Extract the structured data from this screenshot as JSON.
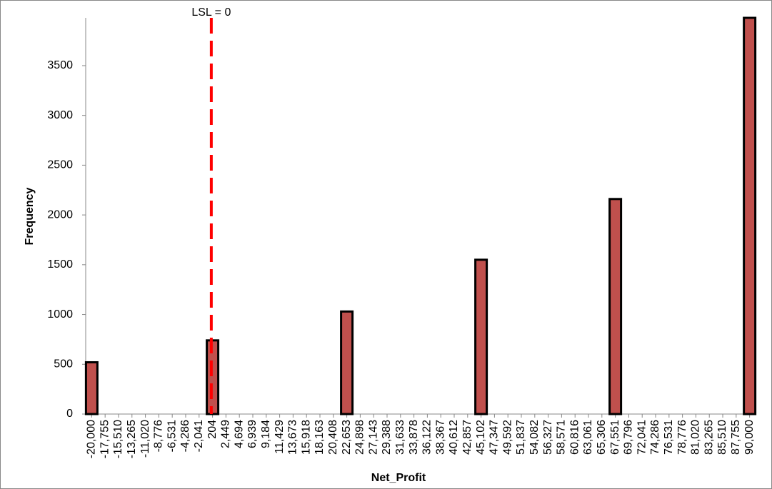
{
  "chart_data": {
    "type": "bar",
    "x_label": "Net_Profit",
    "y_label": "Frequency",
    "x": [
      -20000,
      204,
      22653,
      45102,
      67551,
      90000
    ],
    "values": [
      520,
      740,
      1030,
      1550,
      2160,
      3980
    ],
    "color": "#c0504d",
    "xlim": [
      -21000,
      91000
    ],
    "xticks": [
      {
        "value": -20000,
        "label": "-20,000"
      },
      {
        "value": -17755,
        "label": "-17,755"
      },
      {
        "value": -15510,
        "label": "-15,510"
      },
      {
        "value": -13265,
        "label": "-13,265"
      },
      {
        "value": -11020,
        "label": "-11,020"
      },
      {
        "value": -8776,
        "label": "-8,776"
      },
      {
        "value": -6531,
        "label": "-6,531"
      },
      {
        "value": -4286,
        "label": "-4,286"
      },
      {
        "value": -2041,
        "label": "-2,041"
      },
      204,
      {
        "value": 2449,
        "label": "2,449"
      },
      {
        "value": 4694,
        "label": "4,694"
      },
      {
        "value": 6939,
        "label": "6,939"
      },
      {
        "value": 9184,
        "label": "9,184"
      },
      {
        "value": 11429,
        "label": "11,429"
      },
      {
        "value": 13673,
        "label": "13,673"
      },
      {
        "value": 15918,
        "label": "15,918"
      },
      {
        "value": 18163,
        "label": "18,163"
      },
      {
        "value": 20408,
        "label": "20,408"
      },
      {
        "value": 22653,
        "label": "22,653"
      },
      {
        "value": 24898,
        "label": "24,898"
      },
      {
        "value": 27143,
        "label": "27,143"
      },
      {
        "value": 29388,
        "label": "29,388"
      },
      {
        "value": 31633,
        "label": "31,633"
      },
      {
        "value": 33878,
        "label": "33,878"
      },
      {
        "value": 36122,
        "label": "36,122"
      },
      {
        "value": 38367,
        "label": "38,367"
      },
      {
        "value": 40612,
        "label": "40,612"
      },
      {
        "value": 42857,
        "label": "42,857"
      },
      {
        "value": 45102,
        "label": "45,102"
      },
      {
        "value": 47347,
        "label": "47,347"
      },
      {
        "value": 49592,
        "label": "49,592"
      },
      {
        "value": 51837,
        "label": "51,837"
      },
      {
        "value": 54082,
        "label": "54,082"
      },
      {
        "value": 56327,
        "label": "56,327"
      },
      {
        "value": 58571,
        "label": "58,571"
      },
      {
        "value": 60816,
        "label": "60,816"
      },
      {
        "value": 63061,
        "label": "63,061"
      },
      {
        "value": 65306,
        "label": "65,306"
      },
      {
        "value": 67551,
        "label": "67,551"
      },
      {
        "value": 69796,
        "label": "69,796"
      },
      {
        "value": 72041,
        "label": "72,041"
      },
      {
        "value": 74286,
        "label": "74,286"
      },
      {
        "value": 76531,
        "label": "76,531"
      },
      {
        "value": 78776,
        "label": "78,776"
      },
      {
        "value": 81020,
        "label": "81,020"
      },
      {
        "value": 83265,
        "label": "83,265"
      },
      {
        "value": 85510,
        "label": "85,510"
      },
      {
        "value": 87755,
        "label": "87,755"
      },
      {
        "value": 90000,
        "label": "90,000"
      }
    ],
    "ylim": [
      0,
      3980
    ],
    "yticks": [
      0,
      500,
      1000,
      1500,
      2000,
      2500,
      3000,
      3500
    ],
    "lsl": {
      "value": 0,
      "label": "LSL = 0",
      "color": "#ff0000"
    }
  }
}
